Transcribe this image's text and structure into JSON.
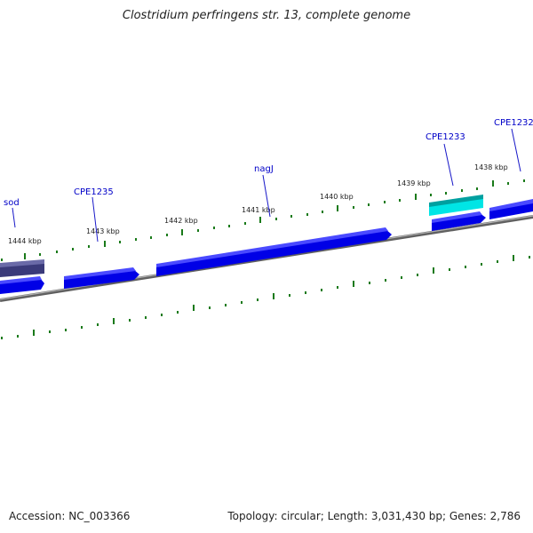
{
  "title": "Clostridium perfringens str. 13, complete genome",
  "footer": {
    "accession_label": "Accession:",
    "accession_value": "NC_003366",
    "summary": "Topology: circular; Length: 3,031,430 bp; Genes: 2,786"
  },
  "scale": {
    "tick_labels": [
      "1444 kbp",
      "1443 kbp",
      "1442 kbp",
      "1441 kbp",
      "1440 kbp",
      "1439 kbp",
      "1438 kbp"
    ]
  },
  "genes": [
    {
      "label": "sod",
      "color": "#0000e6"
    },
    {
      "label": "CPE1235",
      "color": "#0000e6"
    },
    {
      "label": "nagJ",
      "color": "#0000e6"
    },
    {
      "label": "CPE1233",
      "color": "#0000e6"
    },
    {
      "label": "CPE1232",
      "color": "#0000e6"
    }
  ],
  "colors": {
    "gene_forward": "#0000e6",
    "gene_reverse_dark": "#3a3a7a",
    "gene_highlight": "#00e5e5",
    "tick": "#1a7a1a",
    "backbone": "#808080",
    "label_text": "#0000c8"
  }
}
